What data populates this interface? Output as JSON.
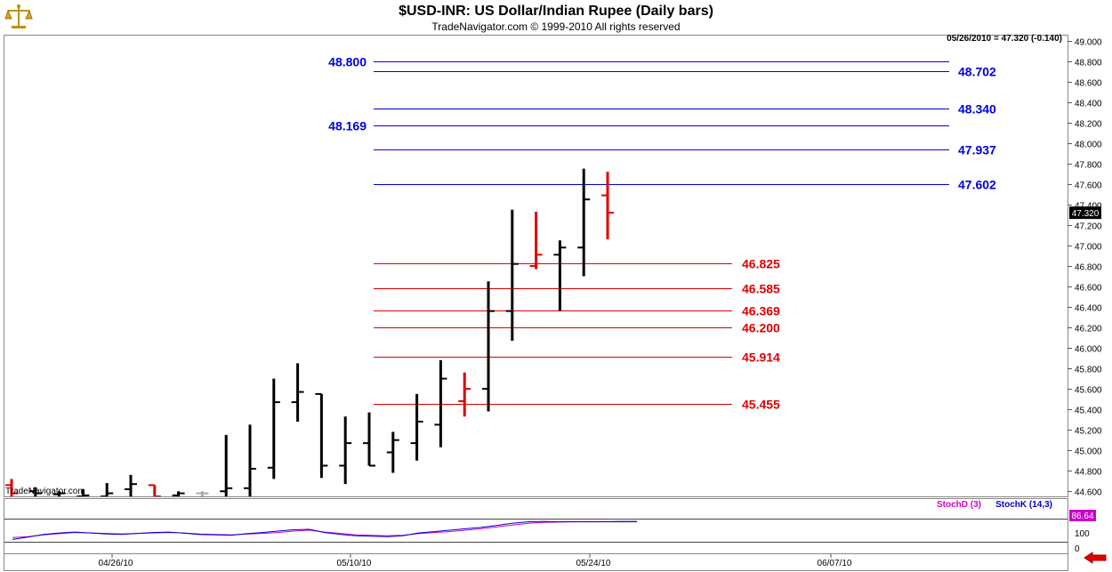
{
  "header": {
    "title": "$USD-INR:  US Dollar/Indian Rupee  (Daily bars)",
    "subtitle": "TradeNavigator.com © 1999-2010 All rights reserved",
    "readout": "05/26/2010 = 47.320 (-0.140)",
    "watermark": "TradeNavigator.com"
  },
  "chart_data": [
    {
      "type": "ohlc",
      "title": "$USD-INR:  US Dollar/Indian Rupee  (Daily bars)",
      "ylim": [
        44.55,
        49.05
      ],
      "yticks": [
        "44.600",
        "44.800",
        "45.000",
        "45.200",
        "45.400",
        "45.600",
        "45.800",
        "46.000",
        "46.200",
        "46.400",
        "46.600",
        "46.800",
        "47.000",
        "47.200",
        "47.400",
        "47.600",
        "47.800",
        "48.000",
        "48.200",
        "48.400",
        "48.600",
        "48.800",
        "49.000"
      ],
      "last_price_label": "47.320",
      "x_ticks": [
        "04/26/10",
        "05/10/10",
        "05/24/10",
        "06/07/10"
      ],
      "colors": {
        "up": "#000000",
        "down": "#e00000"
      },
      "bars": [
        {
          "o": 44.66,
          "h": 44.72,
          "l": 44.52,
          "c": 44.58,
          "color": "red"
        },
        {
          "o": 44.6,
          "h": 44.64,
          "l": 44.52,
          "c": 44.58,
          "color": "black"
        },
        {
          "o": 44.57,
          "h": 44.6,
          "l": 44.5,
          "c": 44.58,
          "color": "black"
        },
        {
          "o": 44.55,
          "h": 44.62,
          "l": 44.5,
          "c": 44.56,
          "color": "black"
        },
        {
          "o": 44.55,
          "h": 44.68,
          "l": 44.5,
          "c": 44.58,
          "color": "black"
        },
        {
          "o": 44.62,
          "h": 44.76,
          "l": 44.52,
          "c": 44.67,
          "color": "black"
        },
        {
          "o": 44.66,
          "h": 44.66,
          "l": 44.5,
          "c": 44.55,
          "color": "red"
        },
        {
          "o": 44.56,
          "h": 44.6,
          "l": 44.5,
          "c": 44.58,
          "color": "black"
        },
        {
          "o": 44.58,
          "h": 44.6,
          "l": 44.5,
          "c": 44.58,
          "color": "gray"
        },
        {
          "o": 44.6,
          "h": 45.15,
          "l": 44.52,
          "c": 44.63,
          "color": "black"
        },
        {
          "o": 44.63,
          "h": 45.25,
          "l": 44.55,
          "c": 44.82,
          "color": "black"
        },
        {
          "o": 44.83,
          "h": 45.7,
          "l": 44.72,
          "c": 45.47,
          "color": "black"
        },
        {
          "o": 45.47,
          "h": 45.85,
          "l": 45.28,
          "c": 45.57,
          "color": "black"
        },
        {
          "o": 45.55,
          "h": 45.55,
          "l": 44.73,
          "c": 44.85,
          "color": "black"
        },
        {
          "o": 44.85,
          "h": 45.33,
          "l": 44.67,
          "c": 45.07,
          "color": "black"
        },
        {
          "o": 45.07,
          "h": 45.37,
          "l": 44.85,
          "c": 44.85,
          "color": "black"
        },
        {
          "o": 44.98,
          "h": 45.18,
          "l": 44.78,
          "c": 45.1,
          "color": "black"
        },
        {
          "o": 45.07,
          "h": 45.55,
          "l": 44.9,
          "c": 45.28,
          "color": "black"
        },
        {
          "o": 45.25,
          "h": 45.88,
          "l": 45.03,
          "c": 45.7,
          "color": "black"
        },
        {
          "o": 45.48,
          "h": 45.76,
          "l": 45.33,
          "c": 45.6,
          "color": "red"
        },
        {
          "o": 45.6,
          "h": 46.65,
          "l": 45.38,
          "c": 46.36,
          "color": "black"
        },
        {
          "o": 46.36,
          "h": 47.35,
          "l": 46.07,
          "c": 46.82,
          "color": "black"
        },
        {
          "o": 46.8,
          "h": 47.33,
          "l": 46.77,
          "c": 46.91,
          "color": "red"
        },
        {
          "o": 46.91,
          "h": 47.05,
          "l": 46.36,
          "c": 46.98,
          "color": "black"
        },
        {
          "o": 46.98,
          "h": 47.75,
          "l": 46.7,
          "c": 47.45,
          "color": "black"
        },
        {
          "o": 47.49,
          "h": 47.72,
          "l": 47.06,
          "c": 47.32,
          "color": "red"
        }
      ],
      "levels": [
        {
          "label": "48.800",
          "value": 48.8,
          "color": "#0000dd",
          "side": "left"
        },
        {
          "label": "48.702",
          "value": 48.702,
          "color": "#0000dd",
          "side": "right"
        },
        {
          "label": "48.340",
          "value": 48.34,
          "color": "#0000dd",
          "side": "right"
        },
        {
          "label": "48.169",
          "value": 48.169,
          "color": "#0000dd",
          "side": "left"
        },
        {
          "label": "47.937",
          "value": 47.937,
          "color": "#0000dd",
          "side": "right"
        },
        {
          "label": "47.602",
          "value": 47.602,
          "color": "#0000dd",
          "side": "right"
        },
        {
          "label": "46.825",
          "value": 46.825,
          "color": "#dd0000",
          "side": "right"
        },
        {
          "label": "46.585",
          "value": 46.585,
          "color": "#dd0000",
          "side": "right"
        },
        {
          "label": "46.369",
          "value": 46.369,
          "color": "#dd0000",
          "side": "right"
        },
        {
          "label": "46.200",
          "value": 46.2,
          "color": "#dd0000",
          "side": "right"
        },
        {
          "label": "45.914",
          "value": 45.914,
          "color": "#dd0000",
          "side": "right"
        },
        {
          "label": "45.455",
          "value": 45.455,
          "color": "#dd0000",
          "side": "right"
        }
      ]
    },
    {
      "type": "line",
      "ylim": [
        0,
        100
      ],
      "yticks": [
        "0",
        "100"
      ],
      "current_value_label": "86.64",
      "series": [
        {
          "name": "StochD (3)",
          "color": "#cc00cc",
          "values": [
            18,
            22,
            30,
            35,
            40,
            38,
            36,
            34,
            36,
            38,
            40,
            38,
            34,
            32,
            30,
            33,
            36,
            40,
            46,
            50,
            42,
            36,
            30,
            28,
            26,
            28,
            35,
            40,
            44,
            50,
            56,
            64,
            72,
            80,
            84,
            85,
            86,
            86,
            86,
            86,
            86
          ]
        },
        {
          "name": "StochK (14,3)",
          "color": "#0000cc",
          "values": [
            10,
            20,
            32,
            38,
            42,
            38,
            34,
            32,
            36,
            40,
            42,
            37,
            31,
            30,
            28,
            35,
            40,
            46,
            52,
            54,
            40,
            32,
            26,
            24,
            22,
            26,
            38,
            44,
            50,
            56,
            62,
            70,
            80,
            86,
            88,
            86,
            87,
            87,
            87,
            88,
            88
          ]
        }
      ]
    }
  ]
}
